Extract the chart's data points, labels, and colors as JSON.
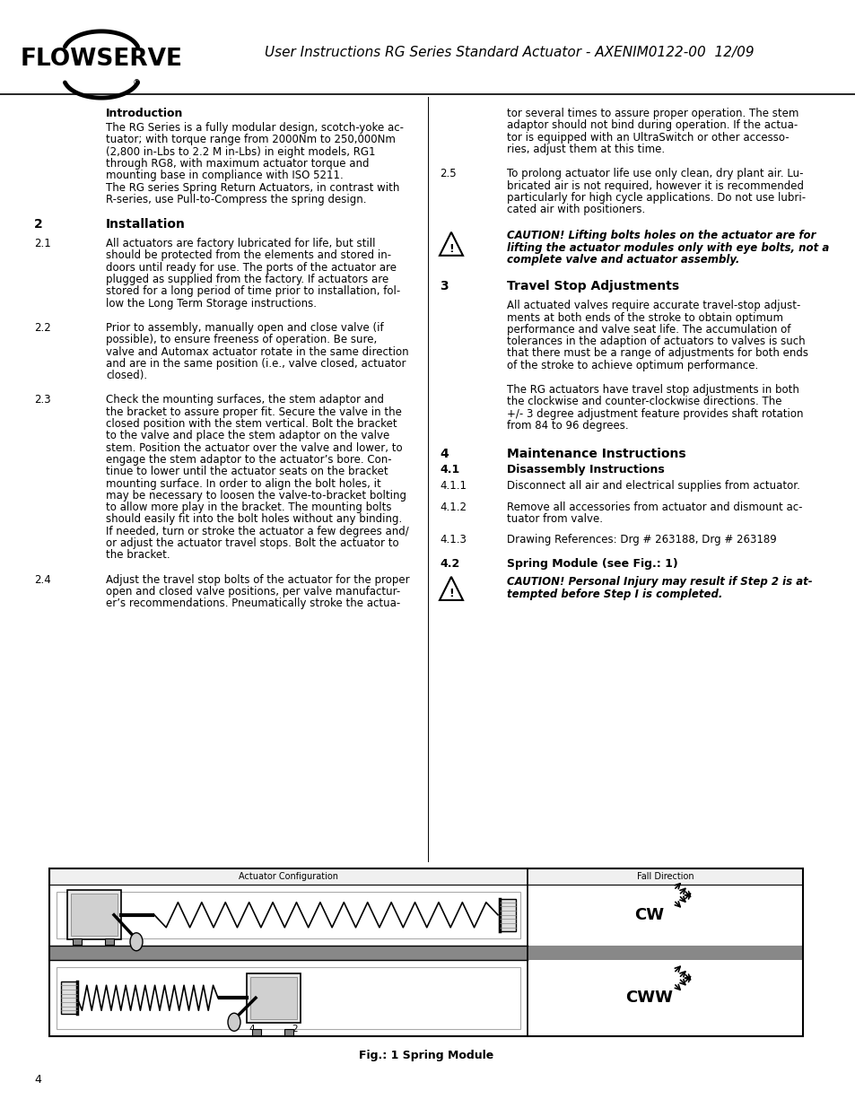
{
  "page_bg": "#ffffff",
  "header_line_color": "#000000",
  "header_doc_title": "User Instructions RG Series Standard Actuator - AXENIM0122-00  12/09",
  "footer_page_number": "4"
}
